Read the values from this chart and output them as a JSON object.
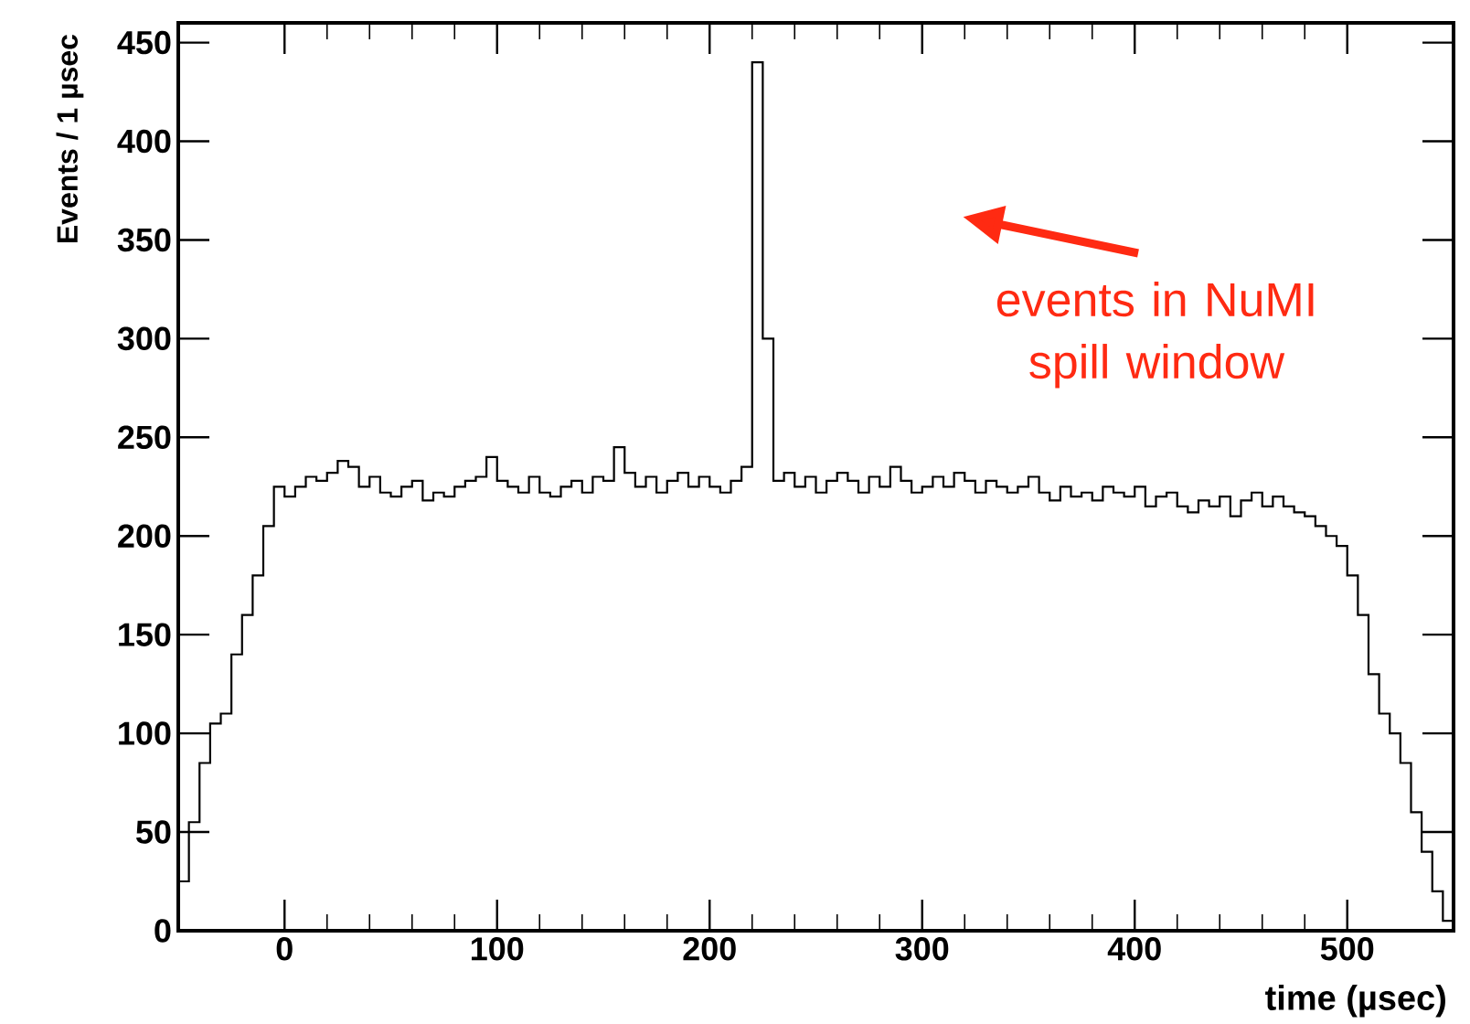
{
  "chart_data": {
    "type": "histogram",
    "xlabel": "time (µsec)",
    "ylabel": "Events / 1 µsec",
    "color": "#000000",
    "bins": [
      -50,
      -45,
      -40,
      -35,
      -30,
      -25,
      -20,
      -15,
      -10,
      -5,
      0,
      5,
      10,
      15,
      20,
      25,
      30,
      35,
      40,
      45,
      50,
      55,
      60,
      65,
      70,
      75,
      80,
      85,
      90,
      95,
      100,
      105,
      110,
      115,
      120,
      125,
      130,
      135,
      140,
      145,
      150,
      155,
      160,
      165,
      170,
      175,
      180,
      185,
      190,
      195,
      200,
      205,
      210,
      215,
      220,
      225,
      230,
      235,
      240,
      245,
      250,
      255,
      260,
      265,
      270,
      275,
      280,
      285,
      290,
      295,
      300,
      305,
      310,
      315,
      320,
      325,
      330,
      335,
      340,
      345,
      350,
      355,
      360,
      365,
      370,
      375,
      380,
      385,
      390,
      395,
      400,
      405,
      410,
      415,
      420,
      425,
      430,
      435,
      440,
      445,
      450,
      455,
      460,
      465,
      470,
      475,
      480,
      485,
      490,
      495,
      500,
      505,
      510,
      515,
      520,
      525,
      530,
      535,
      540,
      545,
      550
    ],
    "values": [
      25,
      55,
      85,
      105,
      110,
      140,
      160,
      180,
      205,
      225,
      220,
      225,
      230,
      228,
      232,
      238,
      235,
      225,
      230,
      222,
      220,
      225,
      228,
      218,
      222,
      220,
      225,
      228,
      230,
      240,
      228,
      225,
      222,
      230,
      222,
      220,
      225,
      228,
      222,
      230,
      228,
      245,
      232,
      225,
      230,
      222,
      228,
      232,
      225,
      230,
      225,
      222,
      228,
      235,
      440,
      300,
      228,
      232,
      225,
      230,
      222,
      228,
      232,
      228,
      222,
      230,
      225,
      235,
      228,
      222,
      225,
      230,
      225,
      232,
      228,
      222,
      228,
      225,
      222,
      225,
      230,
      222,
      218,
      225,
      220,
      222,
      218,
      225,
      222,
      220,
      225,
      215,
      220,
      222,
      215,
      212,
      218,
      215,
      220,
      210,
      218,
      222,
      215,
      220,
      215,
      212,
      210,
      205,
      200,
      195,
      180,
      160,
      130,
      110,
      100,
      85,
      60,
      40,
      20,
      5
    ],
    "xlim": [
      -50,
      550
    ],
    "ylim": [
      0,
      460
    ],
    "xticks": [
      0,
      100,
      200,
      300,
      400,
      500
    ],
    "yticks": [
      0,
      50,
      100,
      150,
      200,
      250,
      300,
      350,
      400,
      450
    ],
    "annotations": [
      "events in NuMI spill window"
    ]
  }
}
